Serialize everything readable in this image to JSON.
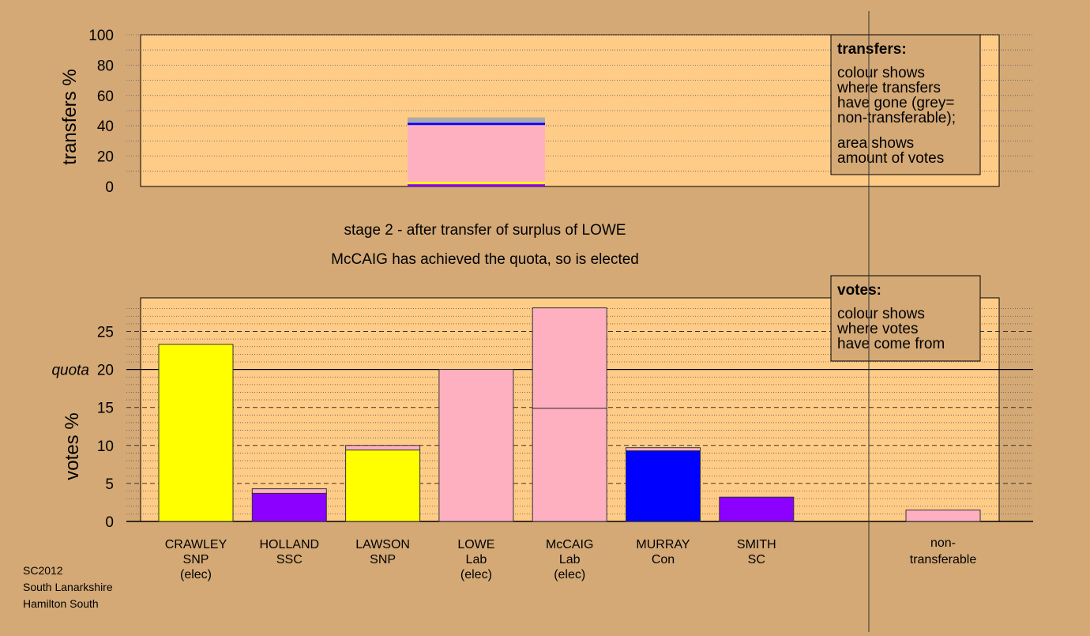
{
  "chart_data": [
    {
      "type": "bar",
      "stacked": true,
      "ylabel": "transfers %",
      "ylim": [
        0,
        100
      ],
      "yticks": [
        0,
        20,
        40,
        60,
        80,
        100
      ],
      "categories": [
        "LOWE"
      ],
      "segments": [
        {
          "source": "HOLLAND SSC",
          "color": "#8b00ff",
          "value": 1.5
        },
        {
          "source": "LAWSON SNP",
          "color": "#ffff00",
          "value": 1.5
        },
        {
          "source": "McCAIG Lab",
          "color": "#ffb0c0",
          "value": 37.5
        },
        {
          "source": "MURRAY Con",
          "color": "#0000ff",
          "value": 1.5
        },
        {
          "source": "non-transferable",
          "color": "#aaaaaa",
          "value": 3.5
        }
      ],
      "legend": {
        "title": "transfers:",
        "lines": [
          "colour shows",
          "where transfers",
          "have gone (grey=",
          "non-transferable);"
        ],
        "lines2": [
          "area shows",
          "amount of votes"
        ]
      }
    },
    {
      "type": "bar",
      "stacked": true,
      "ylabel": "votes %",
      "ylim": [
        0,
        29
      ],
      "yticks": [
        0,
        5,
        10,
        15,
        20,
        25
      ],
      "quota": 20,
      "quota_label": "quota",
      "candidates": [
        {
          "name": "CRAWLEY",
          "party": "SNP",
          "status": "(elec)",
          "segments": [
            {
              "color": "#ffff00",
              "value": 23.3
            }
          ]
        },
        {
          "name": "HOLLAND",
          "party": "SSC",
          "status": "",
          "segments": [
            {
              "color": "#8b00ff",
              "value": 3.7
            },
            {
              "color": "#ffb0c0",
              "value": 0.6
            }
          ]
        },
        {
          "name": "LAWSON",
          "party": "SNP",
          "status": "",
          "segments": [
            {
              "color": "#ffff00",
              "value": 9.4
            },
            {
              "color": "#ffb0c0",
              "value": 0.6
            }
          ]
        },
        {
          "name": "LOWE",
          "party": "Lab",
          "status": "(elec)",
          "segments": [
            {
              "color": "#ffb0c0",
              "value": 20.0
            }
          ]
        },
        {
          "name": "McCAIG",
          "party": "Lab",
          "status": "(elec)",
          "segments": [
            {
              "color": "#ffb0c0",
              "value": 14.9
            },
            {
              "color": "#ffb0c0",
              "value": 13.2
            }
          ]
        },
        {
          "name": "MURRAY",
          "party": "Con",
          "status": "",
          "segments": [
            {
              "color": "#0000ff",
              "value": 9.3
            },
            {
              "color": "#ffb0c0",
              "value": 0.4
            }
          ]
        },
        {
          "name": "SMITH",
          "party": "SC",
          "status": "",
          "segments": [
            {
              "color": "#8b00ff",
              "value": 3.2
            }
          ]
        }
      ],
      "nontransferable": {
        "label_line1": "non-",
        "label_line2": "transferable",
        "segments": [
          {
            "color": "#ffb0c0",
            "value": 1.5
          }
        ]
      },
      "legend": {
        "title": "votes:",
        "lines": [
          "colour shows",
          "where votes",
          "have come from"
        ]
      }
    }
  ],
  "stage": {
    "line1": "stage 2 - after transfer of surplus of LOWE",
    "line2": "McCAIG has achieved the quota, so is elected"
  },
  "footer": {
    "line1": "SC2012",
    "line2": "South Lanarkshire",
    "line3": "Hamilton South"
  }
}
